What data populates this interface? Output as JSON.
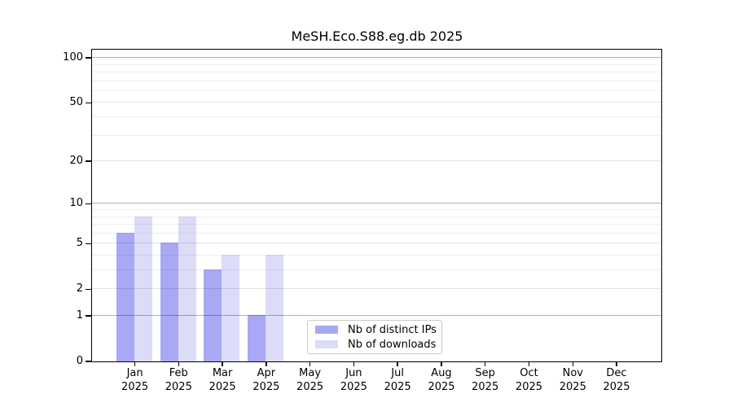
{
  "title": "MeSH.Eco.S88.eg.db 2025",
  "colors": {
    "distinct_ips_bar": "#a8a8f5",
    "downloads_bar": "#dcdcf8",
    "axis": "#000000",
    "grid_decade": "#b5b5b5",
    "grid_major": "#e4e4e4",
    "grid_minor": "#efefef",
    "legend_border": "#c9c9c9"
  },
  "chart_data": {
    "type": "bar",
    "title": "MeSH.Eco.S88.eg.db 2025",
    "xlabel": "",
    "ylabel": "",
    "yscale": "log10(1+v)",
    "ylim": [
      0,
      115
    ],
    "grid": true,
    "legend_position": "inside-bottom-center",
    "categories": [
      "Jan 2025",
      "Feb 2025",
      "Mar 2025",
      "Apr 2025",
      "May 2025",
      "Jun 2025",
      "Jul 2025",
      "Aug 2025",
      "Sep 2025",
      "Oct 2025",
      "Nov 2025",
      "Dec 2025"
    ],
    "series": [
      {
        "name": "Nb of distinct IPs",
        "color": "#a8a8f5",
        "values": [
          6,
          5,
          3,
          1,
          0,
          0,
          0,
          0,
          0,
          0,
          0,
          0
        ]
      },
      {
        "name": "Nb of downloads",
        "color": "#dcdcf8",
        "values": [
          8,
          8,
          4,
          4,
          0,
          0,
          0,
          0,
          0,
          0,
          0,
          0
        ]
      }
    ],
    "yticks": [
      0,
      1,
      2,
      5,
      10,
      20,
      50,
      100
    ],
    "decade_yticks": [
      1,
      10,
      100
    ],
    "minor_yticks": [
      3,
      4,
      6,
      7,
      8,
      9,
      30,
      40,
      60,
      70,
      80,
      90
    ]
  },
  "x_axis": {
    "months": [
      "Jan",
      "Feb",
      "Mar",
      "Apr",
      "May",
      "Jun",
      "Jul",
      "Aug",
      "Sep",
      "Oct",
      "Nov",
      "Dec"
    ],
    "year": "2025"
  },
  "y_axis": {
    "tick_labels": [
      "100",
      "50",
      "20",
      "10",
      "5",
      "2",
      "1",
      "0"
    ]
  },
  "legend": {
    "items": [
      {
        "label": "Nb of distinct IPs",
        "color": "#a8a8f5"
      },
      {
        "label": "Nb of downloads",
        "color": "#dcdcf8"
      }
    ]
  }
}
